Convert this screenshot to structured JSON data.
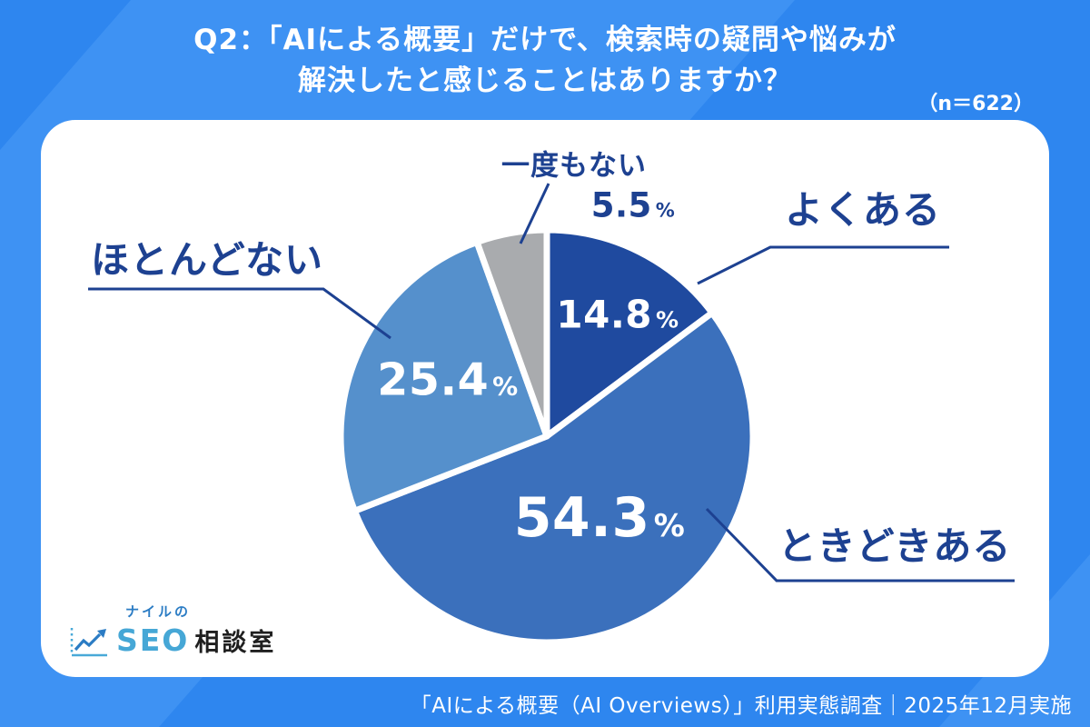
{
  "header": {
    "title_line1": "Q2：「AIによる概要」だけで、検索時の疑問や悩みが",
    "title_line2": "解決したと感じることはありますか？",
    "sample_size": "（n＝622）"
  },
  "chart_data": {
    "type": "pie",
    "title": "Q2：「AIによる概要」だけで、検索時の疑問や悩みが解決したと感じることはありますか？",
    "sample_size_n": 622,
    "unit": "%",
    "direction": "clockwise",
    "start_angle": "12-oclock",
    "legend_position": "callout-labels",
    "segments": [
      {
        "label": "よくある",
        "value": 14.8,
        "pct": "14.8",
        "color": "#1F4A9F"
      },
      {
        "label": "ときどきある",
        "value": 54.3,
        "pct": "54.3",
        "color": "#3B70BC"
      },
      {
        "label": "ほとんどない",
        "value": 25.4,
        "pct": "25.4",
        "color": "#5590CC"
      },
      {
        "label": "一度もない",
        "value": 5.5,
        "pct": "5.5",
        "color": "#A9ABAE"
      }
    ]
  },
  "logo": {
    "top": "ナイルの",
    "seo": "SEO",
    "rest": "相談室"
  },
  "footer": {
    "text": "「AIによる概要（AI Overviews）」利用実態調査｜2025年12月実施"
  },
  "colors": {
    "background": "#2E86EF",
    "background_light": "#3E92F3",
    "card": "#FFFFFF",
    "accent_navy": "#1D4191"
  }
}
